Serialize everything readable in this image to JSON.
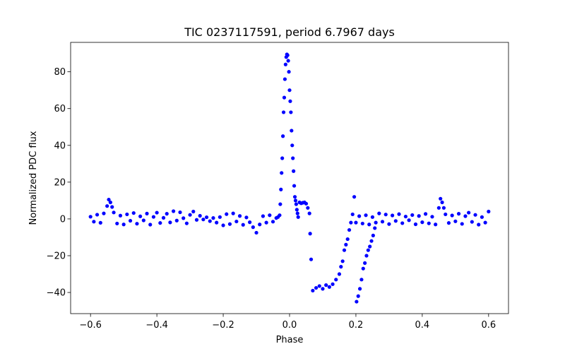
{
  "chart_data": {
    "type": "scatter",
    "title": "TIC 0237117591, period 6.7967 days",
    "xlabel": "Phase",
    "ylabel": "Normalized PDC flux",
    "xlim": [
      -0.66,
      0.66
    ],
    "ylim": [
      -51.5,
      96
    ],
    "x_ticks": [
      -0.6,
      -0.4,
      -0.2,
      0.0,
      0.2,
      0.4,
      0.6
    ],
    "x_tick_labels": [
      "−0.6",
      "−0.4",
      "−0.2",
      "0.0",
      "0.2",
      "0.4",
      "0.6"
    ],
    "y_ticks": [
      -40,
      -20,
      0,
      20,
      40,
      60,
      80
    ],
    "y_tick_labels": [
      "−40",
      "−20",
      "0",
      "20",
      "40",
      "60",
      "80"
    ],
    "grid": false,
    "marker_color": "#0000ff",
    "series": [
      {
        "name": "",
        "points": [
          [
            -0.6,
            1.2
          ],
          [
            -0.59,
            -1.5
          ],
          [
            -0.58,
            2.3
          ],
          [
            -0.57,
            -2.1
          ],
          [
            -0.56,
            3.0
          ],
          [
            -0.55,
            7.0
          ],
          [
            -0.545,
            10.5
          ],
          [
            -0.54,
            9.0
          ],
          [
            -0.535,
            6.5
          ],
          [
            -0.53,
            3.5
          ],
          [
            -0.52,
            -2.5
          ],
          [
            -0.51,
            1.8
          ],
          [
            -0.5,
            -3.0
          ],
          [
            -0.49,
            2.5
          ],
          [
            -0.48,
            -1.0
          ],
          [
            -0.47,
            3.2
          ],
          [
            -0.46,
            -2.6
          ],
          [
            -0.45,
            1.4
          ],
          [
            -0.44,
            -0.8
          ],
          [
            -0.43,
            2.9
          ],
          [
            -0.42,
            -3.1
          ],
          [
            -0.41,
            1.1
          ],
          [
            -0.4,
            3.4
          ],
          [
            -0.39,
            -2.2
          ],
          [
            -0.38,
            0.6
          ],
          [
            -0.37,
            2.8
          ],
          [
            -0.36,
            -1.9
          ],
          [
            -0.35,
            4.2
          ],
          [
            -0.34,
            -0.9
          ],
          [
            -0.33,
            3.6
          ],
          [
            -0.32,
            0.4
          ],
          [
            -0.31,
            -2.4
          ],
          [
            -0.3,
            2.2
          ],
          [
            -0.29,
            4.0
          ],
          [
            -0.28,
            -0.5
          ],
          [
            -0.27,
            1.7
          ],
          [
            -0.26,
            -0.3
          ],
          [
            -0.25,
            0.9
          ],
          [
            -0.24,
            -1.2
          ],
          [
            -0.23,
            0.5
          ],
          [
            -0.22,
            -2.0
          ],
          [
            -0.21,
            1.0
          ],
          [
            -0.2,
            -3.5
          ],
          [
            -0.19,
            2.6
          ],
          [
            -0.18,
            -2.8
          ],
          [
            -0.17,
            3.0
          ],
          [
            -0.16,
            -1.4
          ],
          [
            -0.15,
            1.6
          ],
          [
            -0.14,
            -3.2
          ],
          [
            -0.13,
            0.8
          ],
          [
            -0.12,
            -1.8
          ],
          [
            -0.11,
            -4.5
          ],
          [
            -0.1,
            -7.5
          ],
          [
            -0.09,
            -3.0
          ],
          [
            -0.08,
            1.5
          ],
          [
            -0.07,
            -2.0
          ],
          [
            -0.06,
            2.0
          ],
          [
            -0.05,
            -1.5
          ],
          [
            -0.04,
            0.5
          ],
          [
            -0.035,
            1.0
          ],
          [
            -0.03,
            2.0
          ],
          [
            -0.028,
            8.0
          ],
          [
            -0.026,
            16.0
          ],
          [
            -0.024,
            25.0
          ],
          [
            -0.022,
            33.0
          ],
          [
            -0.02,
            45.0
          ],
          [
            -0.018,
            58.0
          ],
          [
            -0.016,
            66.0
          ],
          [
            -0.014,
            76.0
          ],
          [
            -0.012,
            84.0
          ],
          [
            -0.01,
            88.0
          ],
          [
            -0.008,
            89.5
          ],
          [
            -0.006,
            89.0
          ],
          [
            -0.004,
            86.0
          ],
          [
            -0.002,
            80.0
          ],
          [
            0.0,
            70.0
          ],
          [
            0.002,
            64.0
          ],
          [
            0.004,
            58.0
          ],
          [
            0.006,
            48.0
          ],
          [
            0.008,
            40.0
          ],
          [
            0.01,
            33.0
          ],
          [
            0.012,
            26.0
          ],
          [
            0.014,
            18.0
          ],
          [
            0.016,
            12.0
          ],
          [
            0.018,
            10.0
          ],
          [
            0.02,
            8.0
          ],
          [
            0.022,
            5.0
          ],
          [
            0.024,
            3.0
          ],
          [
            0.026,
            1.0
          ],
          [
            0.03,
            9.0
          ],
          [
            0.035,
            8.5
          ],
          [
            0.04,
            8.8
          ],
          [
            0.045,
            9.0
          ],
          [
            0.05,
            8.3
          ],
          [
            0.055,
            6.0
          ],
          [
            0.06,
            3.0
          ],
          [
            0.062,
            -8.0
          ],
          [
            0.065,
            -22.0
          ],
          [
            0.07,
            -39.0
          ],
          [
            0.08,
            -37.5
          ],
          [
            0.09,
            -36.5
          ],
          [
            0.1,
            -38.0
          ],
          [
            0.11,
            -36.0
          ],
          [
            0.12,
            -37.0
          ],
          [
            0.13,
            -35.5
          ],
          [
            0.14,
            -33.0
          ],
          [
            0.15,
            -30.0
          ],
          [
            0.155,
            -26.0
          ],
          [
            0.16,
            -23.0
          ],
          [
            0.165,
            -17.0
          ],
          [
            0.17,
            -14.0
          ],
          [
            0.175,
            -11.0
          ],
          [
            0.18,
            -6.0
          ],
          [
            0.185,
            -2.0
          ],
          [
            0.19,
            2.5
          ],
          [
            0.195,
            12.0
          ],
          [
            0.2,
            -2.0
          ],
          [
            0.202,
            -45.0
          ],
          [
            0.207,
            -42.0
          ],
          [
            0.212,
            -38.0
          ],
          [
            0.217,
            -33.0
          ],
          [
            0.222,
            -27.0
          ],
          [
            0.227,
            -24.0
          ],
          [
            0.232,
            -20.0
          ],
          [
            0.237,
            -17.0
          ],
          [
            0.242,
            -15.0
          ],
          [
            0.247,
            -12.0
          ],
          [
            0.252,
            -9.0
          ],
          [
            0.257,
            -5.0
          ],
          [
            0.21,
            1.5
          ],
          [
            0.22,
            -2.5
          ],
          [
            0.23,
            2.0
          ],
          [
            0.24,
            -3.0
          ],
          [
            0.25,
            1.0
          ],
          [
            0.26,
            -2.0
          ],
          [
            0.27,
            3.0
          ],
          [
            0.28,
            -1.5
          ],
          [
            0.29,
            2.4
          ],
          [
            0.3,
            -2.8
          ],
          [
            0.31,
            1.9
          ],
          [
            0.32,
            -1.1
          ],
          [
            0.33,
            2.6
          ],
          [
            0.34,
            -2.3
          ],
          [
            0.35,
            1.3
          ],
          [
            0.36,
            -0.7
          ],
          [
            0.37,
            2.1
          ],
          [
            0.38,
            -2.9
          ],
          [
            0.39,
            1.6
          ],
          [
            0.4,
            -1.8
          ],
          [
            0.41,
            2.7
          ],
          [
            0.42,
            -2.4
          ],
          [
            0.43,
            1.2
          ],
          [
            0.44,
            -3.0
          ],
          [
            0.45,
            6.0
          ],
          [
            0.455,
            11.0
          ],
          [
            0.46,
            9.0
          ],
          [
            0.465,
            6.0
          ],
          [
            0.47,
            2.5
          ],
          [
            0.48,
            -2.2
          ],
          [
            0.49,
            1.9
          ],
          [
            0.5,
            -1.3
          ],
          [
            0.51,
            2.8
          ],
          [
            0.52,
            -2.7
          ],
          [
            0.53,
            1.5
          ],
          [
            0.54,
            3.4
          ],
          [
            0.55,
            -1.6
          ],
          [
            0.56,
            2.2
          ],
          [
            0.57,
            -3.1
          ],
          [
            0.58,
            1.0
          ],
          [
            0.59,
            -2.0
          ],
          [
            0.6,
            4.0
          ]
        ]
      }
    ]
  }
}
